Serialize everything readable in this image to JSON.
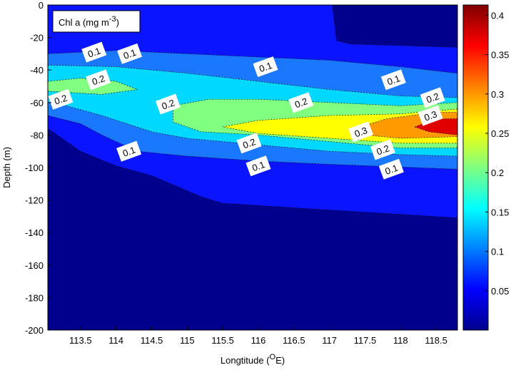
{
  "chart_data": {
    "type": "contour",
    "xlabel": {
      "text": "Longtitude (",
      "superscript": "O",
      "suffix": "E)"
    },
    "ylabel": "Depth (m)",
    "annotation": {
      "text": "Chl a (mg m",
      "superscript": "-3",
      "suffix": ")"
    },
    "xlim": [
      113.04,
      118.8
    ],
    "ylim": [
      -200,
      0
    ],
    "xticks": [
      113.5,
      114,
      114.5,
      115,
      115.5,
      116,
      116.5,
      117,
      117.5,
      118,
      118.5
    ],
    "yticks": [
      0,
      -20,
      -40,
      -60,
      -80,
      -100,
      -120,
      -140,
      -160,
      -180,
      -200
    ],
    "below_color": "#00008c",
    "contours": [
      {
        "color": "#0a14ff",
        "x": [
          113.04,
          117.04,
          117.1,
          117.3,
          118.8,
          118.8,
          115.5,
          115.2,
          114.5,
          114,
          113.5,
          113.04
        ],
        "y": [
          0,
          0,
          -22,
          -24,
          -26,
          -131,
          -122,
          -118,
          -105,
          -99,
          -90,
          -76
        ]
      },
      {
        "color": "#1a78ff",
        "x": [
          113.04,
          114,
          115,
          116,
          117,
          118,
          118.8,
          118.8,
          117,
          116,
          115,
          114.3,
          113.8,
          113.5,
          113.04
        ],
        "y": [
          -30,
          -28,
          -30,
          -32,
          -34,
          -38,
          -42,
          -101,
          -98,
          -96,
          -93,
          -90,
          -80,
          -73,
          -68
        ]
      },
      {
        "color": "#00d8ff",
        "x": [
          113.04,
          114,
          115,
          116,
          117,
          118,
          118.8,
          118.8,
          118,
          117,
          116,
          115,
          114.5,
          113.8,
          113.3,
          113.04
        ],
        "y": [
          -37,
          -38,
          -42,
          -47,
          -52,
          -56,
          -57,
          -93,
          -92,
          -90,
          -86,
          -82,
          -78,
          -68,
          -62,
          -60
        ]
      },
      {
        "color": "#80ff80",
        "x": [
          113.04,
          113.5,
          114,
          114.3,
          113.8,
          113.04
        ],
        "y": [
          -47,
          -45,
          -47,
          -52,
          -55,
          -53
        ]
      },
      {
        "color": "#80ff80",
        "x": [
          114.8,
          115.3,
          116,
          117,
          118,
          118.8,
          118.8,
          118,
          117,
          116,
          115.2,
          114.8
        ],
        "y": [
          -62,
          -58,
          -58,
          -60,
          -62,
          -60,
          -88,
          -88,
          -84,
          -80,
          -78,
          -72
        ]
      },
      {
        "color": "#ffff00",
        "x": [
          115.5,
          116,
          117,
          118,
          118.8,
          118.8,
          118,
          117,
          116
        ],
        "y": [
          -75,
          -71,
          -68,
          -67,
          -64,
          -85,
          -85,
          -82,
          -79
        ]
      },
      {
        "color": "#ff9a00",
        "x": [
          117.3,
          117.8,
          118.5,
          118.8,
          118.8,
          118,
          117.5
        ],
        "y": [
          -77,
          -70,
          -66,
          -66,
          -81,
          -82,
          -80
        ]
      },
      {
        "color": "#e00000",
        "x": [
          118.2,
          118.5,
          118.8,
          118.8,
          118.4
        ],
        "y": [
          -75,
          -70,
          -70,
          -80,
          -78
        ]
      }
    ],
    "contour_labels": [
      {
        "x": 113.69,
        "y": -29,
        "value": 0.1
      },
      {
        "x": 114.19,
        "y": -30,
        "value": 0.1
      },
      {
        "x": 116.1,
        "y": -38,
        "value": 0.1
      },
      {
        "x": 117.9,
        "y": -46,
        "value": 0.1
      },
      {
        "x": 114.18,
        "y": -90,
        "value": 0.1
      },
      {
        "x": 116.0,
        "y": -99,
        "value": 0.1
      },
      {
        "x": 117.87,
        "y": -101,
        "value": 0.1
      },
      {
        "x": 113.75,
        "y": -46,
        "value": 0.2
      },
      {
        "x": 113.22,
        "y": -58,
        "value": 0.2
      },
      {
        "x": 114.73,
        "y": -61,
        "value": 0.2
      },
      {
        "x": 116.6,
        "y": -60,
        "value": 0.2
      },
      {
        "x": 118.45,
        "y": -57,
        "value": 0.2
      },
      {
        "x": 115.87,
        "y": -85,
        "value": 0.2
      },
      {
        "x": 117.75,
        "y": -89,
        "value": 0.2
      },
      {
        "x": 117.44,
        "y": -78,
        "value": 0.3
      },
      {
        "x": 118.42,
        "y": -68,
        "value": 0.3
      }
    ],
    "colorbar": {
      "clim": [
        0,
        0.413
      ],
      "ticks": [
        0.05,
        0.1,
        0.15,
        0.2,
        0.25,
        0.3,
        0.35,
        0.4
      ],
      "colormap": [
        "#00008c",
        "#0000ff",
        "#0080ff",
        "#00ffff",
        "#80ff80",
        "#ffff00",
        "#ff8000",
        "#ff0000",
        "#800000"
      ]
    }
  }
}
